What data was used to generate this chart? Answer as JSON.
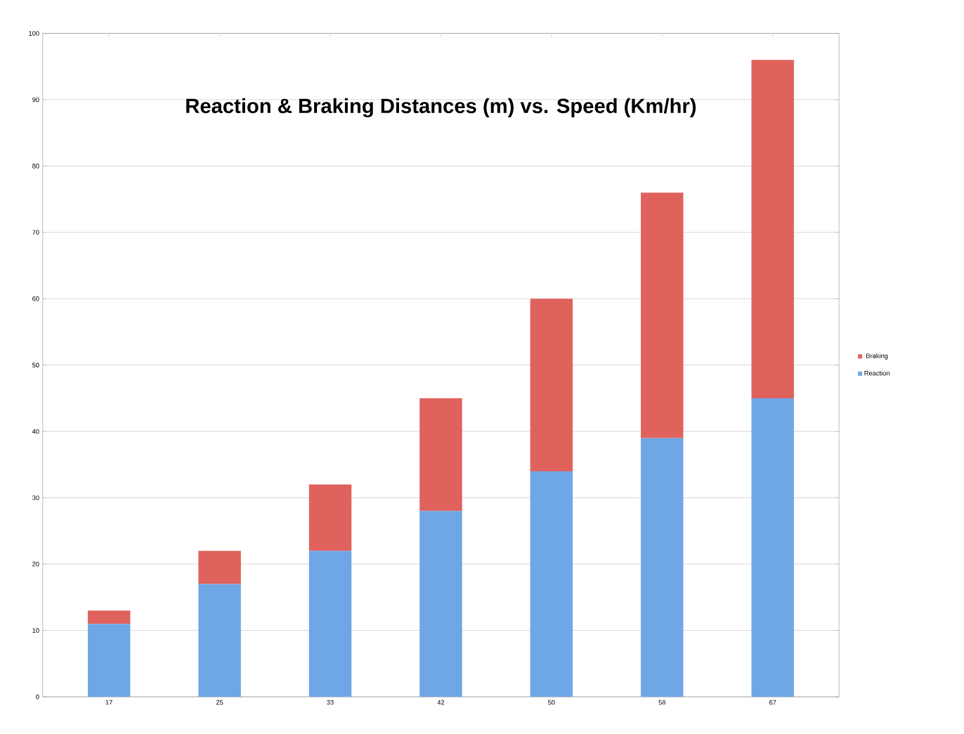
{
  "chart_data": {
    "type": "bar",
    "title": "Reaction & Braking Distances (m) vs. Speed (Km/hr)",
    "categories": [
      "17",
      "25",
      "33",
      "42",
      "50",
      "58",
      "67"
    ],
    "stacked": true,
    "series": [
      {
        "name": "Reaction",
        "color": "#6fa6e6",
        "values": [
          11,
          17,
          22,
          28,
          34,
          39,
          45
        ]
      },
      {
        "name": "Braking",
        "color": "#e0625c",
        "values": [
          2,
          5,
          10,
          17,
          26,
          37,
          51
        ]
      }
    ],
    "ylim": [
      0,
      100
    ],
    "yticks": [
      0,
      10,
      20,
      30,
      40,
      50,
      60,
      70,
      80,
      90,
      100
    ],
    "grid": "y",
    "legend": "right"
  }
}
